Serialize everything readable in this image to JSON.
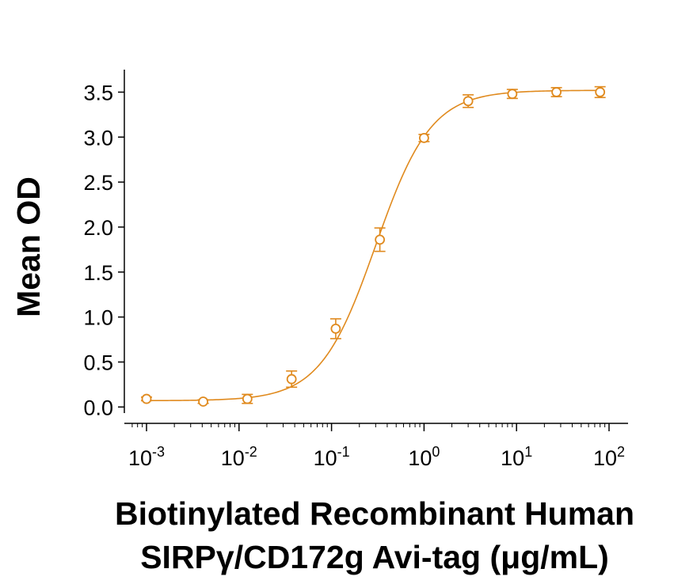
{
  "chart_data": {
    "type": "scatter",
    "xlabel_lines": [
      "Biotinylated Recombinant Human",
      "SIRPγ/CD172g Avi-tag (μg/mL)"
    ],
    "ylabel": "Mean OD",
    "x_scale": "log",
    "xlim": [
      0.0006,
      120
    ],
    "ylim": [
      -0.05,
      3.75
    ],
    "y_ticks": [
      "0.0",
      "0.5",
      "1.0",
      "1.5",
      "2.0",
      "2.5",
      "3.0",
      "3.5"
    ],
    "x_ticks": [
      {
        "base": "10",
        "exp": "-3"
      },
      {
        "base": "10",
        "exp": "-2"
      },
      {
        "base": "10",
        "exp": "-1"
      },
      {
        "base": "10",
        "exp": "0"
      },
      {
        "base": "10",
        "exp": "1"
      },
      {
        "base": "10",
        "exp": "2"
      }
    ],
    "color": "#E08A1E",
    "series": [
      {
        "points": [
          {
            "x": 0.001,
            "y": 0.09,
            "err": 0.02
          },
          {
            "x": 0.0041,
            "y": 0.06,
            "err": 0.02
          },
          {
            "x": 0.0123,
            "y": 0.09,
            "err": 0.05
          },
          {
            "x": 0.037,
            "y": 0.31,
            "err": 0.09
          },
          {
            "x": 0.111,
            "y": 0.87,
            "err": 0.11
          },
          {
            "x": 0.333,
            "y": 1.86,
            "err": 0.13
          },
          {
            "x": 1.0,
            "y": 2.99,
            "err": 0.04
          },
          {
            "x": 3.0,
            "y": 3.4,
            "err": 0.07
          },
          {
            "x": 9.0,
            "y": 3.48,
            "err": 0.05
          },
          {
            "x": 27.0,
            "y": 3.5,
            "err": 0.05
          },
          {
            "x": 80.0,
            "y": 3.5,
            "err": 0.06
          }
        ],
        "fit": {
          "bottom": 0.07,
          "top": 3.52,
          "ec50": 0.3,
          "hill": 1.45
        }
      }
    ]
  }
}
